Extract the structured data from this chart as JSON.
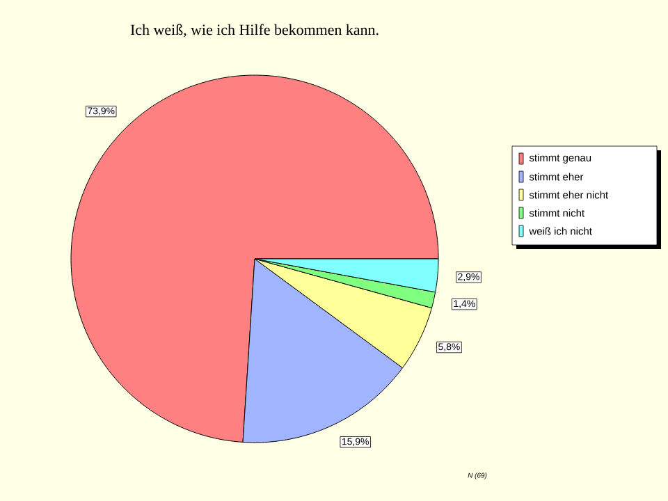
{
  "chart_data": {
    "type": "pie",
    "title": "Ich weiß, wie ich Hilfe bekommen kann.",
    "categories": [
      "stimmt genau",
      "stimmt eher",
      "stimmt eher nicht",
      "stimmt nicht",
      "weiß ich nicht"
    ],
    "values": [
      73.9,
      15.9,
      5.8,
      1.4,
      2.9
    ],
    "colors": [
      "#ff8080",
      "#a0b4ff",
      "#ffff99",
      "#80ff80",
      "#80ffff"
    ],
    "value_labels": [
      "73,9%",
      "15,9%",
      "5,8%",
      "1,4%",
      "2,9%"
    ],
    "legend": "right",
    "annotations": [
      "N (69)"
    ]
  }
}
